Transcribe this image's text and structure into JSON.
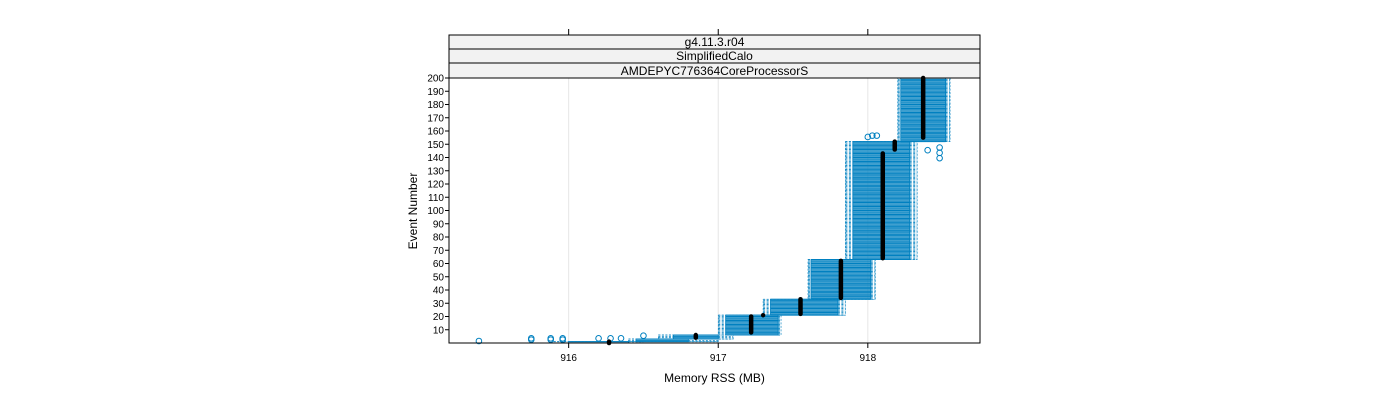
{
  "chart_data": {
    "type": "box",
    "title": "",
    "strips": [
      "g4.11.3.r04",
      "SimplifiedCalo",
      "AMDEPYC776364CoreProcessorS"
    ],
    "xlabel": "Memory RSS (MB)",
    "ylabel": "Event Number",
    "xlim": [
      915.2,
      918.75
    ],
    "ylim": [
      0,
      200
    ],
    "x_ticks": [
      916,
      917,
      918
    ],
    "y_ticks": [
      10,
      20,
      30,
      40,
      50,
      60,
      70,
      80,
      90,
      100,
      110,
      120,
      130,
      140,
      150,
      160,
      170,
      180,
      190,
      200
    ],
    "grid": "vertical",
    "colors": {
      "box": "#0080c0",
      "median": "#000000",
      "outlier": "#0080c0",
      "strip": "#f2f2f2"
    },
    "boxes": [
      {
        "y0": 0,
        "y1": 1,
        "q1": 916.0,
        "q3": 916.4,
        "min": 915.9,
        "max": 916.5,
        "median": 916.28
      },
      {
        "y0": 1,
        "y1": 3,
        "q1": 916.45,
        "q3": 916.8,
        "min": 916.4,
        "max": 917.0,
        "median": 916.65
      },
      {
        "y0": 3,
        "y1": 6,
        "q1": 916.7,
        "q3": 917.0,
        "min": 916.6,
        "max": 917.1,
        "median": 916.85
      },
      {
        "y0": 6,
        "y1": 21,
        "q1": 917.05,
        "q3": 917.4,
        "min": 917.0,
        "max": 917.42,
        "median": 917.22
      },
      {
        "y0": 21,
        "y1": 33,
        "q1": 917.35,
        "q3": 917.8,
        "min": 917.3,
        "max": 917.85,
        "median": 917.55
      },
      {
        "y0": 33,
        "y1": 63,
        "q1": 917.62,
        "q3": 918.02,
        "min": 917.6,
        "max": 918.05,
        "median": 917.82
      },
      {
        "y0": 63,
        "y1": 152,
        "q1": 917.9,
        "q3": 918.28,
        "min": 917.85,
        "max": 918.33,
        "median": 918.1
      },
      {
        "y0": 152,
        "y1": 200,
        "q1": 918.22,
        "q3": 918.52,
        "min": 918.2,
        "max": 918.55,
        "median": 918.37
      }
    ],
    "medians": [
      {
        "x": 916.27,
        "y0": 0,
        "y1": 1
      },
      {
        "x": 916.85,
        "y0": 4,
        "y1": 6
      },
      {
        "x": 917.22,
        "y0": 8,
        "y1": 20
      },
      {
        "x": 917.3,
        "y0": 21,
        "y1": 21
      },
      {
        "x": 917.55,
        "y0": 22,
        "y1": 33
      },
      {
        "x": 917.82,
        "y0": 34,
        "y1": 62
      },
      {
        "x": 918.1,
        "y0": 64,
        "y1": 143
      },
      {
        "x": 918.18,
        "y0": 146,
        "y1": 152
      },
      {
        "x": 918.37,
        "y0": 155,
        "y1": 200
      }
    ],
    "outliers": [
      {
        "x": 915.4,
        "y": 0
      },
      {
        "x": 915.75,
        "y": 1
      },
      {
        "x": 915.75,
        "y": 2
      },
      {
        "x": 915.88,
        "y": 1
      },
      {
        "x": 915.88,
        "y": 2
      },
      {
        "x": 915.96,
        "y": 1
      },
      {
        "x": 915.96,
        "y": 2
      },
      {
        "x": 916.2,
        "y": 2
      },
      {
        "x": 916.28,
        "y": 2
      },
      {
        "x": 916.35,
        "y": 2
      },
      {
        "x": 916.5,
        "y": 4
      },
      {
        "x": 918.0,
        "y": 154
      },
      {
        "x": 918.03,
        "y": 155
      },
      {
        "x": 918.06,
        "y": 155
      },
      {
        "x": 918.4,
        "y": 144
      },
      {
        "x": 918.48,
        "y": 138
      },
      {
        "x": 918.48,
        "y": 142
      },
      {
        "x": 918.48,
        "y": 146
      }
    ]
  }
}
